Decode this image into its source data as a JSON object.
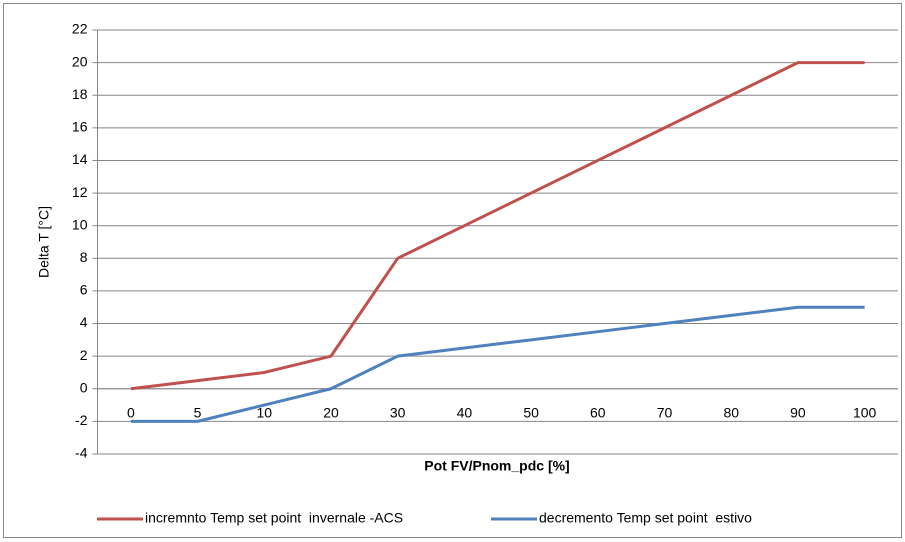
{
  "chart_data": {
    "type": "line",
    "x_label": "Pot FV/Pnom_pdc [%]",
    "y_label": "Delta T [°C]",
    "categories": [
      0,
      5,
      10,
      20,
      30,
      40,
      50,
      60,
      70,
      80,
      90,
      100
    ],
    "series": [
      {
        "name": "incremnto Temp set point  invernale -ACS",
        "color": "#c0504d",
        "values": [
          0,
          0.5,
          1,
          2,
          8,
          10,
          12,
          14,
          16,
          18,
          20,
          20
        ]
      },
      {
        "name": "decremento Temp set point  estivo",
        "color": "#4f81bd",
        "values": [
          -2,
          -2,
          -1,
          0,
          2,
          2.5,
          3,
          3.5,
          4,
          4.5,
          5,
          5
        ]
      }
    ],
    "ylim": [
      -4,
      22
    ],
    "yticks": [
      -4,
      -2,
      0,
      2,
      4,
      6,
      8,
      10,
      12,
      14,
      16,
      18,
      20,
      22
    ],
    "grid": true,
    "legend": "bottom"
  }
}
